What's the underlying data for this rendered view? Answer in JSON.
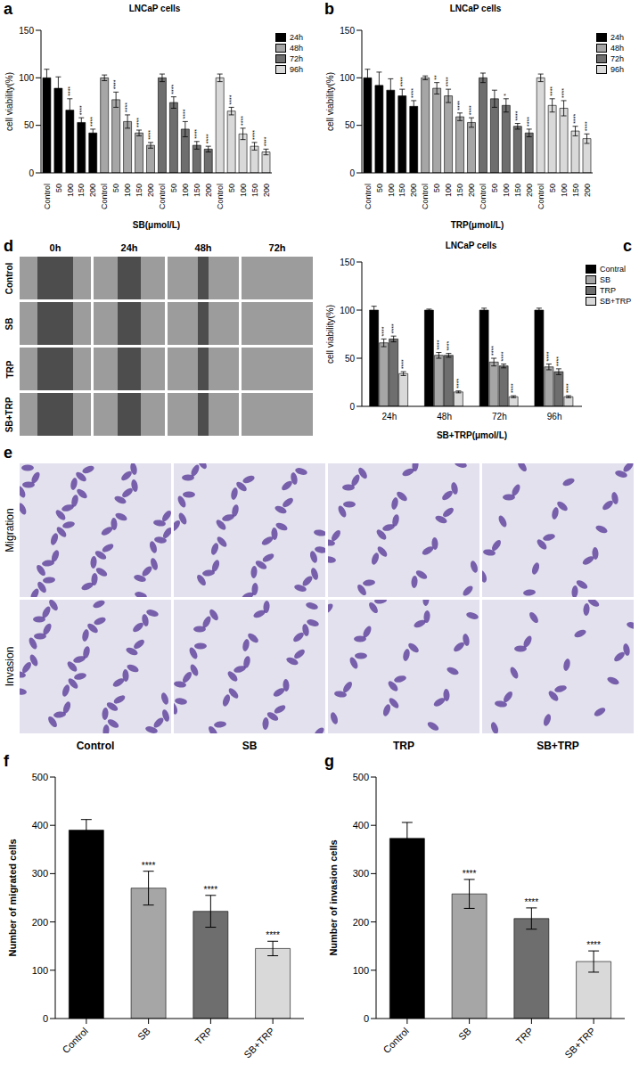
{
  "chart_data": [
    {
      "panel": "a",
      "type": "bar",
      "title": "LNCaP cells",
      "x_label": "SB(μmol/L)",
      "y_label": "cell viability(%)",
      "categories": [
        "Control",
        "50",
        "100",
        "150",
        "200",
        "Control",
        "50",
        "100",
        "150",
        "200",
        "Control",
        "50",
        "100",
        "150",
        "200",
        "Control",
        "50",
        "100",
        "150",
        "200"
      ],
      "series": [
        {
          "name": "24h",
          "color": "#000000",
          "values": [
            100,
            89,
            66,
            53,
            42,
            null,
            null,
            null,
            null,
            null,
            null,
            null,
            null,
            null,
            null,
            null,
            null,
            null,
            null,
            null
          ],
          "errors": [
            9,
            12,
            12,
            5,
            4,
            null,
            null,
            null,
            null,
            null,
            null,
            null,
            null,
            null,
            null,
            null,
            null,
            null,
            null,
            null
          ],
          "significance": [
            null,
            null,
            "****",
            "****",
            "****",
            null,
            null,
            null,
            null,
            null,
            null,
            null,
            null,
            null,
            null,
            null,
            null,
            null,
            null,
            null
          ]
        },
        {
          "name": "48h",
          "color": "#a6a6a6",
          "values": [
            null,
            null,
            null,
            null,
            null,
            100,
            77,
            54,
            42,
            29,
            null,
            null,
            null,
            null,
            null,
            null,
            null,
            null,
            null,
            null
          ],
          "errors": [
            null,
            null,
            null,
            null,
            null,
            3,
            8,
            7,
            3,
            3,
            null,
            null,
            null,
            null,
            null,
            null,
            null,
            null,
            null,
            null
          ],
          "significance": [
            null,
            null,
            null,
            null,
            null,
            null,
            "****",
            "****",
            "****",
            "****",
            null,
            null,
            null,
            null,
            null,
            null,
            null,
            null,
            null,
            null
          ]
        },
        {
          "name": "72h",
          "color": "#6e6e6e",
          "values": [
            null,
            null,
            null,
            null,
            null,
            null,
            null,
            null,
            null,
            null,
            100,
            74,
            46,
            29,
            25,
            null,
            null,
            null,
            null,
            null
          ],
          "errors": [
            null,
            null,
            null,
            null,
            null,
            null,
            null,
            null,
            null,
            null,
            4,
            6,
            8,
            4,
            3,
            null,
            null,
            null,
            null,
            null
          ],
          "significance": [
            null,
            null,
            null,
            null,
            null,
            null,
            null,
            null,
            null,
            null,
            null,
            "****",
            "****",
            "****",
            "****",
            null,
            null,
            null,
            null,
            null
          ]
        },
        {
          "name": "96h",
          "color": "#d9d9d9",
          "values": [
            null,
            null,
            null,
            null,
            null,
            null,
            null,
            null,
            null,
            null,
            null,
            null,
            null,
            null,
            null,
            100,
            65,
            41,
            28,
            22
          ],
          "errors": [
            null,
            null,
            null,
            null,
            null,
            null,
            null,
            null,
            null,
            null,
            null,
            null,
            null,
            null,
            null,
            4,
            4,
            6,
            4,
            3
          ],
          "significance": [
            null,
            null,
            null,
            null,
            null,
            null,
            null,
            null,
            null,
            null,
            null,
            null,
            null,
            null,
            null,
            null,
            "****",
            "****",
            "****",
            "****"
          ]
        }
      ],
      "ylim": [
        0,
        150
      ],
      "yticks": [
        0,
        50,
        100,
        150
      ],
      "legend": "right"
    },
    {
      "panel": "b",
      "type": "bar",
      "title": "LNCaP cells",
      "x_label": "TRP(μmol/L)",
      "y_label": "cell viability(%)",
      "categories": [
        "Control",
        "50",
        "100",
        "150",
        "200",
        "Control",
        "50",
        "100",
        "150",
        "200",
        "Control",
        "50",
        "100",
        "150",
        "200",
        "Control",
        "50",
        "100",
        "150",
        "200"
      ],
      "series": [
        {
          "name": "24h",
          "color": "#000000",
          "values": [
            100,
            92,
            87,
            81,
            70,
            null,
            null,
            null,
            null,
            null,
            null,
            null,
            null,
            null,
            null,
            null,
            null,
            null,
            null,
            null
          ],
          "errors": [
            9,
            14,
            12,
            7,
            6,
            null,
            null,
            null,
            null,
            null,
            null,
            null,
            null,
            null,
            null,
            null,
            null,
            null,
            null,
            null
          ],
          "significance": [
            null,
            null,
            null,
            "****",
            "****",
            null,
            null,
            null,
            null,
            null,
            null,
            null,
            null,
            null,
            null,
            null,
            null,
            null,
            null,
            null
          ]
        },
        {
          "name": "48h",
          "color": "#a6a6a6",
          "values": [
            null,
            null,
            null,
            null,
            null,
            100,
            89,
            81,
            59,
            53,
            null,
            null,
            null,
            null,
            null,
            null,
            null,
            null,
            null,
            null
          ],
          "errors": [
            null,
            null,
            null,
            null,
            null,
            2,
            6,
            7,
            4,
            5,
            null,
            null,
            null,
            null,
            null,
            null,
            null,
            null,
            null,
            null
          ],
          "significance": [
            null,
            null,
            null,
            null,
            null,
            null,
            "**",
            "****",
            "****",
            "****",
            null,
            null,
            null,
            null,
            null,
            null,
            null,
            null,
            null,
            null
          ]
        },
        {
          "name": "72h",
          "color": "#6e6e6e",
          "values": [
            null,
            null,
            null,
            null,
            null,
            null,
            null,
            null,
            null,
            null,
            100,
            78,
            71,
            49,
            42,
            null,
            null,
            null,
            null,
            null
          ],
          "errors": [
            null,
            null,
            null,
            null,
            null,
            null,
            null,
            null,
            null,
            null,
            5,
            9,
            7,
            3,
            4,
            null,
            null,
            null,
            null,
            null
          ],
          "significance": [
            null,
            null,
            null,
            null,
            null,
            null,
            null,
            null,
            null,
            null,
            null,
            null,
            "*",
            "****",
            "****",
            null,
            null,
            null,
            null,
            null
          ]
        },
        {
          "name": "96h",
          "color": "#d9d9d9",
          "values": [
            null,
            null,
            null,
            null,
            null,
            null,
            null,
            null,
            null,
            null,
            null,
            null,
            null,
            null,
            null,
            100,
            71,
            68,
            44,
            36
          ],
          "errors": [
            null,
            null,
            null,
            null,
            null,
            null,
            null,
            null,
            null,
            null,
            null,
            null,
            null,
            null,
            null,
            4,
            7,
            8,
            5,
            5
          ],
          "significance": [
            null,
            null,
            null,
            null,
            null,
            null,
            null,
            null,
            null,
            null,
            null,
            null,
            null,
            null,
            null,
            null,
            "****",
            "****",
            "****",
            "****"
          ]
        }
      ],
      "ylim": [
        0,
        150
      ],
      "yticks": [
        0,
        50,
        100,
        150
      ],
      "legend": "right"
    },
    {
      "panel": "c",
      "type": "bar",
      "title": "LNCaP cells",
      "x_label": "SB+TRP(μmol/L)",
      "y_label": "cell viability(%)",
      "categories": [
        "24h",
        "48h",
        "72h",
        "96h"
      ],
      "series": [
        {
          "name": "Contral",
          "color": "#000000",
          "values": [
            100,
            100,
            100,
            100
          ],
          "errors": [
            4,
            1,
            2,
            2
          ],
          "significance": [
            null,
            null,
            null,
            null
          ]
        },
        {
          "name": "SB",
          "color": "#a6a6a6",
          "values": [
            66,
            53,
            46,
            41
          ],
          "errors": [
            4,
            3,
            4,
            3
          ],
          "significance": [
            "****",
            "****",
            "****",
            "****"
          ]
        },
        {
          "name": "TRP",
          "color": "#6e6e6e",
          "values": [
            70,
            53,
            42,
            36
          ],
          "errors": [
            3,
            2,
            2,
            3
          ],
          "significance": [
            "****",
            "****",
            "****",
            "****"
          ]
        },
        {
          "name": "SB+TRP",
          "color": "#d9d9d9",
          "values": [
            34,
            15,
            10,
            10
          ],
          "errors": [
            2,
            1,
            1,
            1
          ],
          "significance": [
            "****",
            "****",
            "****",
            "****"
          ]
        }
      ],
      "ylim": [
        0,
        150
      ],
      "yticks": [
        0,
        50,
        100,
        150
      ],
      "legend": "right"
    },
    {
      "panel": "f",
      "type": "bar",
      "y_label": "Number of  migrated cells",
      "categories": [
        "Control",
        "SB",
        "TRP",
        "SB+TRP"
      ],
      "values": [
        390,
        270,
        222,
        145
      ],
      "errors": [
        22,
        35,
        33,
        15
      ],
      "significance": [
        null,
        "****",
        "****",
        "****"
      ],
      "colors": [
        "#000000",
        "#a6a6a6",
        "#6e6e6e",
        "#d9d9d9"
      ],
      "ylim": [
        0,
        500
      ],
      "yticks": [
        0,
        100,
        200,
        300,
        400,
        500
      ]
    },
    {
      "panel": "g",
      "type": "bar",
      "y_label": "Number of invasion cells",
      "categories": [
        "Control",
        "SB",
        "TRP",
        "SB+TRP"
      ],
      "values": [
        373,
        258,
        207,
        118
      ],
      "errors": [
        33,
        30,
        22,
        22
      ],
      "significance": [
        null,
        "****",
        "****",
        "****"
      ],
      "colors": [
        "#000000",
        "#a6a6a6",
        "#6e6e6e",
        "#d9d9d9"
      ],
      "ylim": [
        0,
        500
      ],
      "yticks": [
        0,
        100,
        200,
        300,
        400,
        500
      ]
    }
  ],
  "image_panels": [
    {
      "panel": "d",
      "column_labels": [
        "0h",
        "24h",
        "48h",
        "72h"
      ],
      "row_labels": [
        "Control",
        "SB",
        "TRP",
        "SB+TRP"
      ]
    },
    {
      "panel": "e",
      "row_labels": [
        "Migration",
        "Invasion"
      ],
      "column_labels": [
        "Control",
        "SB",
        "TRP",
        "SB+TRP"
      ]
    }
  ]
}
